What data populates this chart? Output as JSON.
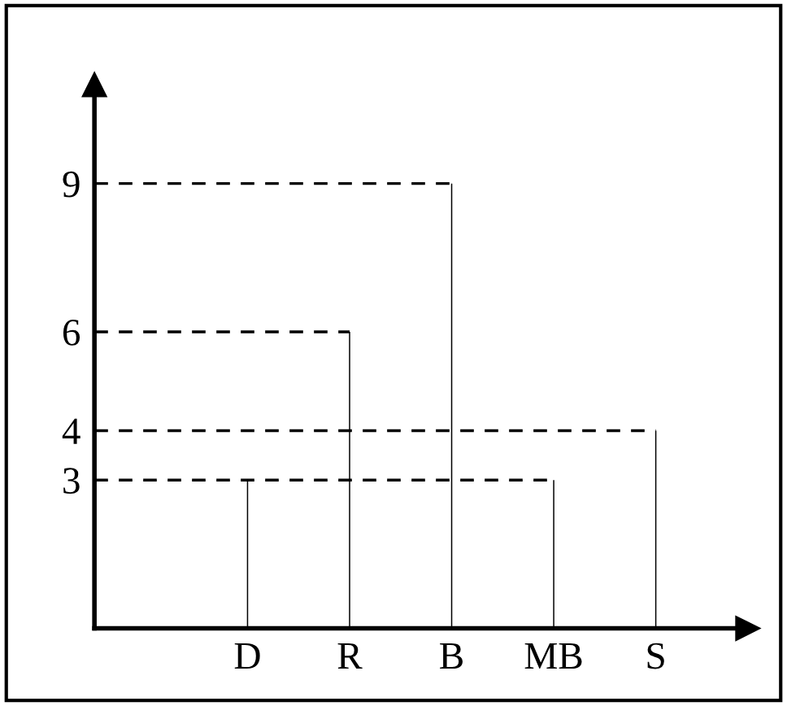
{
  "chart_data": {
    "type": "bar",
    "categories": [
      "D",
      "R",
      "B",
      "MB",
      "S"
    ],
    "values": [
      3,
      6,
      9,
      3,
      4
    ],
    "color": "#000000",
    "ylim": [
      0,
      11
    ],
    "yticks": [
      3,
      4,
      6,
      9
    ],
    "grid": false,
    "legend": false,
    "ref_lines": [
      {
        "axis": "y",
        "value": 9,
        "line_style": "dashed",
        "color": "#000000"
      },
      {
        "axis": "y",
        "value": 6,
        "line_style": "dashed",
        "color": "#000000"
      },
      {
        "axis": "y",
        "value": 4,
        "line_style": "dashed",
        "color": "#000000"
      },
      {
        "axis": "y",
        "value": 3,
        "line_style": "dashed",
        "color": "#000000"
      }
    ]
  }
}
